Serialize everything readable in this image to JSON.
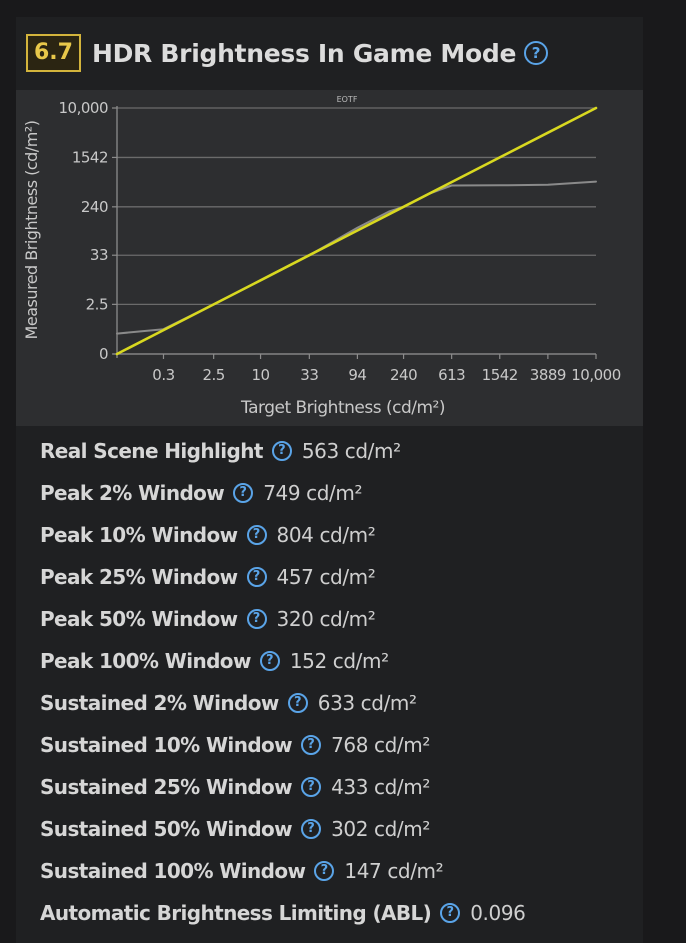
{
  "header": {
    "score": "6.7",
    "title": "HDR Brightness In Game Mode",
    "help_icon": "question-circle-icon"
  },
  "colors": {
    "score_border": "#d3b43c",
    "help_icon": "#5aa4e8",
    "target_line": "#d8d820",
    "measured_line": "#8a8a8a",
    "chart_background": "#2d2e30"
  },
  "chart_data": {
    "type": "line",
    "title": "EOTF",
    "xlabel": "Target Brightness (cd/m²)",
    "ylabel": "Measured Brightness (cd/m²)",
    "x_ticks": [
      "0.3",
      "2.5",
      "10",
      "33",
      "94",
      "240",
      "613",
      "1542",
      "3889",
      "10,000"
    ],
    "y_ticks": [
      "0",
      "2.5",
      "33",
      "240",
      "1542",
      "10,000"
    ],
    "x_scale": "PQ",
    "y_scale": "PQ",
    "grid": true,
    "series": [
      {
        "role": "target",
        "x": [
          0,
          0.3,
          2.5,
          10,
          33,
          94,
          240,
          613,
          1542,
          3889,
          10000
        ],
        "y": [
          0,
          0.3,
          2.5,
          10,
          33,
          94,
          240,
          613,
          1542,
          3889,
          10000
        ]
      },
      {
        "role": "measured",
        "x": [
          0,
          0.3,
          2.5,
          10,
          33,
          94,
          180,
          240,
          400,
          613,
          1542,
          3889,
          10000
        ],
        "y": [
          0.2,
          0.33,
          2.5,
          10,
          33,
          105,
          200,
          240,
          400,
          540,
          545,
          555,
          625
        ]
      }
    ]
  },
  "specs": [
    {
      "label": "Real Scene Highlight",
      "value": "563 cd/m²"
    },
    {
      "label": "Peak 2% Window",
      "value": "749 cd/m²"
    },
    {
      "label": "Peak 10% Window",
      "value": "804 cd/m²"
    },
    {
      "label": "Peak 25% Window",
      "value": "457 cd/m²"
    },
    {
      "label": "Peak 50% Window",
      "value": "320 cd/m²"
    },
    {
      "label": "Peak 100% Window",
      "value": "152 cd/m²"
    },
    {
      "label": "Sustained 2% Window",
      "value": "633 cd/m²"
    },
    {
      "label": "Sustained 10% Window",
      "value": "768 cd/m²"
    },
    {
      "label": "Sustained 25% Window",
      "value": "433 cd/m²"
    },
    {
      "label": "Sustained 50% Window",
      "value": "302 cd/m²"
    },
    {
      "label": "Sustained 100% Window",
      "value": "147 cd/m²"
    },
    {
      "label": "Automatic Brightness Limiting (ABL)",
      "value": "0.096"
    }
  ]
}
